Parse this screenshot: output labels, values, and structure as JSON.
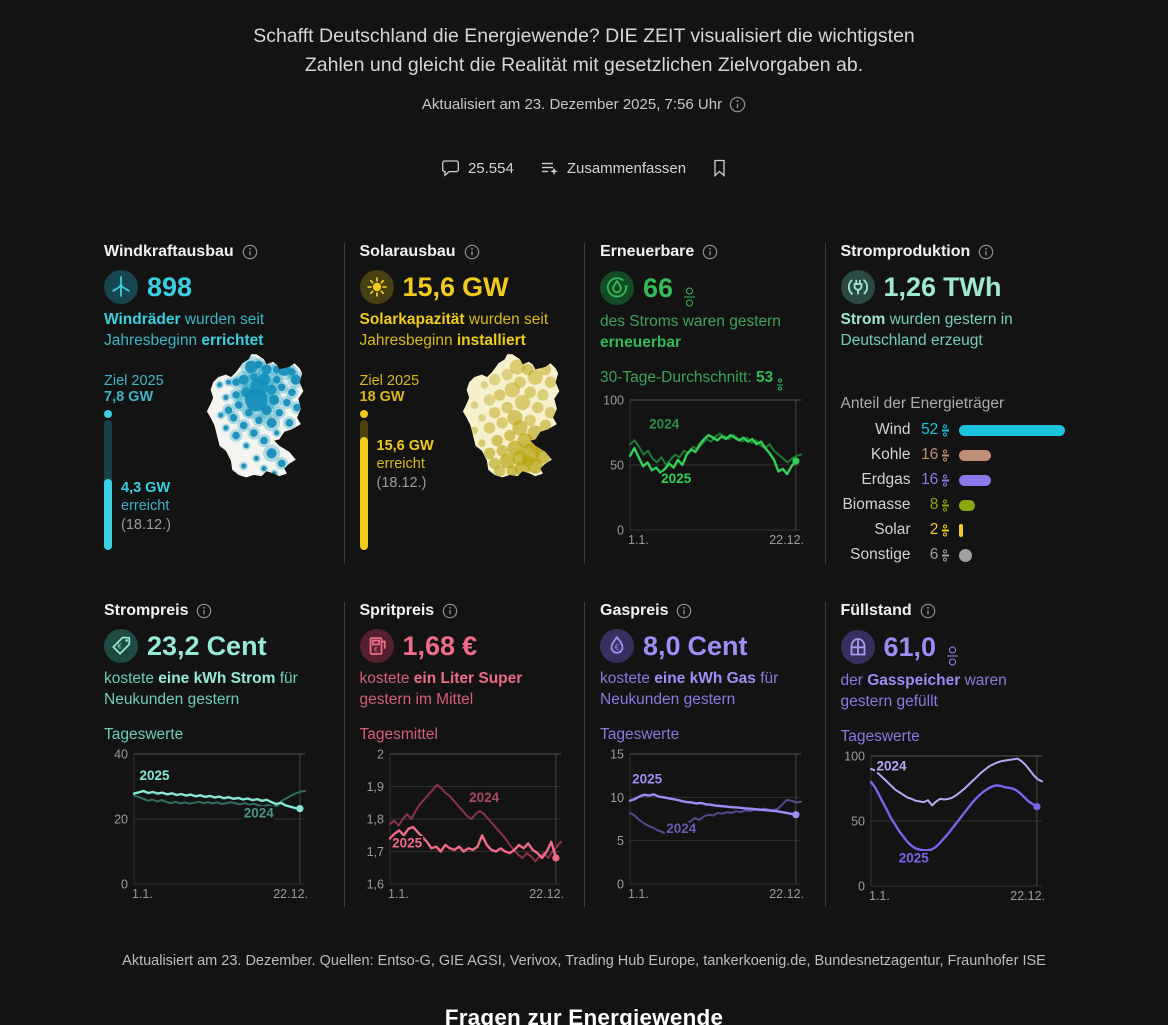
{
  "header": {
    "title": "Schafft Deutschland die Energiewende? DIE ZEIT visualisiert die wichtigsten Zahlen und gleicht die Realität mit gesetzlichen Zielvorgaben ab.",
    "updated": "Aktualisiert am 23. Dezember 2025, 7:56 Uhr",
    "comments_count": "25.554",
    "summarize_label": "Zusammenfassen"
  },
  "colors": {
    "background": "#131313",
    "divider": "#3d3d3d",
    "axis_label": "#9b9b9b",
    "grid_strong": "#565656",
    "grid_soft": "#303030"
  },
  "panels": [
    {
      "title": "Windkraftausbau",
      "icon": "wind-turbine",
      "accent": "#3bcfe2",
      "text": "#3fb4c6",
      "icon_bg": "#17464f",
      "icon_fg": "#3bcfe2",
      "track": "#173f47",
      "value": "898",
      "unit": "",
      "desc": [
        {
          "t": "Windräder ",
          "b": 1
        },
        {
          "t": "wurden seit Jahresbeginn ",
          "b": 0
        },
        {
          "t": "errichtet",
          "b": 1
        }
      ],
      "goal": {
        "label": "Ziel 2025",
        "target": "7,8 GW",
        "fill_pct": 55,
        "reached": "4,3 GW",
        "word": "erreicht",
        "date": "(18.12.)"
      },
      "map": "wind"
    },
    {
      "title": "Solarausbau",
      "icon": "sun",
      "accent": "#f0cb1d",
      "text": "#d8b81c",
      "icon_bg": "#474011",
      "icon_fg": "#f0cb1d",
      "track": "#4c420d",
      "value": "15,6",
      "unit": "GW",
      "desc": [
        {
          "t": "Solarkapazität ",
          "b": 1
        },
        {
          "t": "wurden seit Jahresbeginn ",
          "b": 0
        },
        {
          "t": "installiert",
          "b": 1
        }
      ],
      "goal": {
        "label": "Ziel 2025",
        "target": "18 GW",
        "fill_pct": 87,
        "reached": "15,6 GW",
        "word": "erreicht",
        "date": "(18.12.)"
      },
      "map": "solar"
    },
    {
      "title": "Erneuerbare",
      "icon": "recycle-drop",
      "accent": "#35bb55",
      "text": "#3fa257",
      "icon_bg": "#124b24",
      "icon_fg": "#35bb55",
      "value": "66",
      "unit": "%",
      "desc": [
        {
          "t": "des Stroms waren gestern ",
          "b": 0
        },
        {
          "t": "erneuerbar",
          "b": 1
        }
      ],
      "sub_rich": [
        {
          "t": "30-Tage-Durchschnitt: ",
          "b": 0
        },
        {
          "t": "53",
          "b": 1,
          "pct": true
        }
      ],
      "chart": 0
    },
    {
      "title": "Stromproduktion",
      "icon": "plug",
      "accent": "#9fe8d2",
      "text": "#74cdb8",
      "icon_bg": "#2c4a45",
      "icon_fg": "#9fe8d2",
      "value": "1,26",
      "unit": "TWh",
      "desc": [
        {
          "t": "Strom ",
          "b": 1
        },
        {
          "t": "wurden gestern in Deutschland erzeugt",
          "b": 0
        }
      ],
      "mix_title": "Anteil der Energieträger",
      "mix": [
        {
          "label": "Wind",
          "value": 52,
          "display": "52",
          "color": "#1bc4da",
          "shape": "bar"
        },
        {
          "label": "Kohle",
          "value": 16,
          "display": "16",
          "color": "#c08e74",
          "shape": "bar"
        },
        {
          "label": "Erdgas",
          "value": 16,
          "display": "16",
          "color": "#8d78ea",
          "shape": "bar"
        },
        {
          "label": "Biomasse",
          "value": 8,
          "display": "8",
          "color": "#8aa80e",
          "shape": "bar"
        },
        {
          "label": "Solar",
          "value": 2,
          "display": "2",
          "color": "#f0cd2a",
          "shape": "sliver"
        },
        {
          "label": "Sonstige",
          "value": 6,
          "display": "6",
          "color": "#a0a0a0",
          "shape": "dot"
        }
      ]
    },
    {
      "title": "Strompreis",
      "icon": "price-tag",
      "accent": "#96ead7",
      "text": "#6fcdbb",
      "icon_bg": "#1f4a42",
      "icon_fg": "#96ead7",
      "value": "23,2",
      "unit": "Cent",
      "desc": [
        {
          "t": "kostete ",
          "b": 0
        },
        {
          "t": "eine kWh Strom ",
          "b": 1
        },
        {
          "t": "für Neukunden gestern",
          "b": 0
        }
      ],
      "sub": "Tageswerte",
      "chart": 1
    },
    {
      "title": "Spritpreis",
      "icon": "fuel-pump",
      "accent": "#ee6c87",
      "text": "#d65f78",
      "icon_bg": "#54202e",
      "icon_fg": "#ee6c87",
      "value": "1,68",
      "unit": "€",
      "desc": [
        {
          "t": "kostete ",
          "b": 0
        },
        {
          "t": "ein Liter Super ",
          "b": 1
        },
        {
          "t": "gestern im Mittel",
          "b": 0
        }
      ],
      "sub": "Tagesmittel",
      "chart": 2
    },
    {
      "title": "Gaspreis",
      "icon": "flame",
      "accent": "#a18df5",
      "text": "#8c79e0",
      "icon_bg": "#37305e",
      "icon_fg": "#a18df5",
      "value": "8,0",
      "unit": "Cent",
      "desc": [
        {
          "t": "kostete ",
          "b": 0
        },
        {
          "t": "eine kWh Gas ",
          "b": 1
        },
        {
          "t": "für Neukunden gestern",
          "b": 0
        }
      ],
      "sub": "Tageswerte",
      "chart": 3
    },
    {
      "title": "Füllstand",
      "icon": "gas-tank",
      "accent": "#9f8bf4",
      "text": "#8c79e0",
      "icon_bg": "#37305e",
      "icon_fg": "#a99af5",
      "value": "61,0",
      "unit": "%",
      "desc": [
        {
          "t": "der ",
          "b": 0
        },
        {
          "t": "Gasspeicher ",
          "b": 1
        },
        {
          "t": "waren gestern gefüllt",
          "b": 0
        }
      ],
      "sub": "Tageswerte",
      "chart": 4
    }
  ],
  "chart_data": [
    {
      "type": "line",
      "title": "Erneuerbare – Anteil am Strom (%)",
      "ylim": [
        0,
        100
      ],
      "yticks": [
        {
          "v": 0,
          "label": "0"
        },
        {
          "v": 50,
          "label": "50"
        },
        {
          "v": 100,
          "label": "100"
        }
      ],
      "xticks": [
        "1.1.",
        "22.12."
      ],
      "vline_frac": 0.97,
      "series": [
        {
          "name": "2024",
          "color": "#1e7a33",
          "width": 2,
          "end_frac": 1,
          "values": [
            66,
            69,
            64,
            58,
            61,
            55,
            52,
            56,
            50,
            54,
            58,
            56,
            61,
            59,
            64,
            62,
            66,
            70,
            68,
            72,
            74,
            72,
            70,
            73,
            70,
            68,
            71,
            67,
            69,
            65,
            63,
            66,
            61,
            58,
            55,
            52,
            55,
            57,
            58
          ]
        },
        {
          "name": "2025",
          "color": "#33cf56",
          "width": 2.4,
          "end_frac": 0.97,
          "dot": true,
          "values": [
            57,
            63,
            56,
            49,
            52,
            46,
            48,
            44,
            47,
            51,
            48,
            54,
            50,
            58,
            62,
            60,
            66,
            70,
            73,
            71,
            69,
            72,
            70,
            73,
            71,
            69,
            71,
            68,
            70,
            66,
            68,
            63,
            59,
            54,
            45,
            47,
            43,
            49,
            53
          ]
        }
      ],
      "labels": [
        {
          "text": "2024",
          "fx": 0.2,
          "v": 78,
          "color": "#2c8f45"
        },
        {
          "text": "2025",
          "fx": 0.27,
          "v": 36,
          "color": "#33cf56"
        }
      ]
    },
    {
      "type": "line",
      "title": "Strompreis (Cent/kWh)",
      "ylim": [
        0,
        40
      ],
      "yticks": [
        {
          "v": 0,
          "label": "0"
        },
        {
          "v": 20,
          "label": "20"
        },
        {
          "v": 40,
          "label": "40"
        }
      ],
      "xticks": [
        "1.1.",
        "22.12."
      ],
      "vline_frac": 0.97,
      "series": [
        {
          "name": "2024",
          "color": "#2e6e62",
          "width": 2,
          "end_frac": 1,
          "values": [
            27.2,
            26.8,
            26.2,
            25.6,
            26,
            25.4,
            25.8,
            25.2,
            24.9,
            25.3,
            24.8,
            25.1,
            24.7,
            25,
            25.3,
            24.9,
            25.2,
            24.8,
            25.1,
            24.6,
            24.9,
            25.2,
            24.8,
            24.5,
            24.9,
            24.4,
            24.7,
            24.2,
            23.9,
            24.3,
            23.8,
            24.1,
            25.6,
            26.4,
            27.2,
            27.9,
            28.4,
            28.6
          ]
        },
        {
          "name": "2025",
          "color": "#86e8d4",
          "width": 2.4,
          "end_frac": 0.97,
          "dot": true,
          "values": [
            27.8,
            28.2,
            28.6,
            28,
            28.3,
            27.8,
            28.1,
            27.6,
            27.9,
            27.4,
            27.7,
            27.2,
            27.5,
            27,
            27.3,
            26.8,
            27.1,
            26.6,
            26.9,
            26.4,
            26.7,
            26.2,
            26.5,
            26,
            26.3,
            25.8,
            26.1,
            25.6,
            25.9,
            25.2,
            24.6,
            25,
            24.2,
            23.8,
            23.4,
            23.2
          ]
        }
      ],
      "labels": [
        {
          "text": "2025",
          "fx": 0.12,
          "v": 32,
          "color": "#86e8d4"
        },
        {
          "text": "2024",
          "fx": 0.73,
          "v": 20.5,
          "color": "#4a9484"
        }
      ]
    },
    {
      "type": "line",
      "title": "Spritpreis Super (€/l)",
      "ylim": [
        1.6,
        2.0
      ],
      "yticks": [
        {
          "v": 1.6,
          "label": "1,6"
        },
        {
          "v": 1.7,
          "label": "1,7"
        },
        {
          "v": 1.8,
          "label": "1,8"
        },
        {
          "v": 1.9,
          "label": "1,9"
        },
        {
          "v": 2,
          "label": "2"
        }
      ],
      "xticks": [
        "1.1.",
        "22.12."
      ],
      "vline_frac": 0.97,
      "series": [
        {
          "name": "2024",
          "color": "#8c3349",
          "width": 2,
          "end_frac": 1,
          "values": [
            1.785,
            1.795,
            1.78,
            1.8,
            1.815,
            1.8,
            1.825,
            1.845,
            1.86,
            1.875,
            1.89,
            1.905,
            1.895,
            1.88,
            1.87,
            1.855,
            1.84,
            1.825,
            1.81,
            1.8,
            1.815,
            1.825,
            1.815,
            1.8,
            1.785,
            1.77,
            1.755,
            1.74,
            1.72,
            1.705,
            1.69,
            1.68,
            1.695,
            1.685,
            1.67,
            1.685,
            1.695,
            1.68,
            1.7,
            1.715,
            1.73
          ]
        },
        {
          "name": "2025",
          "color": "#ee6c87",
          "width": 2.4,
          "end_frac": 0.97,
          "dot": true,
          "values": [
            1.74,
            1.755,
            1.765,
            1.75,
            1.77,
            1.775,
            1.76,
            1.745,
            1.73,
            1.71,
            1.715,
            1.7,
            1.72,
            1.71,
            1.705,
            1.715,
            1.7,
            1.71,
            1.705,
            1.715,
            1.75,
            1.72,
            1.705,
            1.7,
            1.71,
            1.7,
            1.695,
            1.705,
            1.72,
            1.71,
            1.725,
            1.705,
            1.695,
            1.68,
            1.7,
            1.73,
            1.68
          ]
        }
      ],
      "labels": [
        {
          "text": "2024",
          "fx": 0.55,
          "v": 1.852,
          "color": "#a64b62"
        },
        {
          "text": "2025",
          "fx": 0.1,
          "v": 1.713,
          "color": "#ee6c87"
        }
      ]
    },
    {
      "type": "line",
      "title": "Gaspreis (Cent/kWh)",
      "ylim": [
        0,
        15
      ],
      "yticks": [
        {
          "v": 0,
          "label": "0"
        },
        {
          "v": 5,
          "label": "5"
        },
        {
          "v": 10,
          "label": "10"
        },
        {
          "v": 15,
          "label": "15"
        }
      ],
      "xticks": [
        "1.1.",
        "22.12."
      ],
      "vline_frac": 0.97,
      "series": [
        {
          "name": "2024",
          "color": "#564793",
          "width": 2,
          "end_frac": 1,
          "values": [
            8.2,
            7.9,
            7.4,
            7,
            6.7,
            6.5,
            6.2,
            6,
            5.7,
            6.6,
            6.3,
            6.6,
            6.9,
            7.2,
            7.6,
            7.4,
            7.8,
            8,
            7.9,
            8.2,
            8.1,
            8.3,
            8.2,
            8.4,
            8.3,
            8.5,
            8.4,
            8.6,
            8.5,
            8.7,
            8.6,
            8.5,
            8.7,
            9.2,
            9.7,
            9.6,
            9.4,
            9.5
          ]
        },
        {
          "name": "2025",
          "color": "#9f8bf4",
          "width": 2.4,
          "end_frac": 0.97,
          "dot": true,
          "values": [
            9.6,
            9.8,
            10.1,
            10.3,
            10.2,
            10.35,
            10.1,
            10,
            9.9,
            9.8,
            9.7,
            9.55,
            9.45,
            9.4,
            9.3,
            9.35,
            9.2,
            9.15,
            9.05,
            9,
            8.95,
            8.9,
            8.85,
            8.8,
            8.75,
            8.7,
            8.65,
            8.6,
            8.55,
            8.5,
            8.45,
            8.4,
            8.3,
            8.2,
            8.1,
            8
          ]
        }
      ],
      "labels": [
        {
          "text": "2025",
          "fx": 0.1,
          "v": 11.6,
          "color": "#9f8bf4"
        },
        {
          "text": "2024",
          "fx": 0.3,
          "v": 5.9,
          "color": "#6a5bb0"
        }
      ]
    },
    {
      "type": "line",
      "title": "Füllstand Gasspeicher (%)",
      "ylim": [
        0,
        100
      ],
      "yticks": [
        {
          "v": 0,
          "label": "0"
        },
        {
          "v": 50,
          "label": "50"
        },
        {
          "v": 100,
          "label": "100"
        }
      ],
      "xticks": [
        "1.1.",
        "22.12."
      ],
      "vline_frac": 0.97,
      "series": [
        {
          "name": "2024",
          "color": "#b4a9f5",
          "width": 2,
          "end_frac": 1,
          "values": [
            90,
            89,
            86,
            83,
            80,
            77,
            74,
            72,
            70,
            68,
            67,
            65.5,
            65,
            64.5,
            66,
            62,
            65,
            67,
            66.5,
            67,
            68,
            70,
            72.5,
            75,
            78,
            81,
            84,
            87,
            89.5,
            92,
            93.5,
            95,
            96,
            96.5,
            97,
            97.5,
            98,
            96,
            93,
            89,
            85,
            82,
            80.5
          ]
        },
        {
          "name": "2025",
          "color": "#7a64ec",
          "width": 2.4,
          "end_frac": 0.97,
          "dot": true,
          "values": [
            80,
            76,
            70,
            64,
            58,
            52,
            47,
            42,
            38,
            34,
            31,
            29,
            28,
            27.5,
            27.5,
            28,
            30,
            33,
            36.5,
            40,
            44,
            48,
            52,
            56,
            60,
            64,
            67.5,
            70.5,
            73,
            75,
            76.5,
            77.5,
            77,
            76,
            75.5,
            75,
            73.5,
            71,
            68,
            65,
            63,
            61
          ]
        }
      ],
      "labels": [
        {
          "text": "2024",
          "fx": 0.12,
          "v": 89,
          "color": "#b4a9f5"
        },
        {
          "text": "2025",
          "fx": 0.25,
          "v": 18,
          "color": "#7a64ec"
        }
      ]
    }
  ],
  "footer": {
    "sources": "Aktualisiert am 23. Dezember. Quellen: Entso-G, GIE AGSI, Verivox, Trading Hub Europe, tankerkoenig.de, Bundesnetzagentur, Fraunhofer ISE",
    "heading": "Fragen zur Energiewende"
  }
}
